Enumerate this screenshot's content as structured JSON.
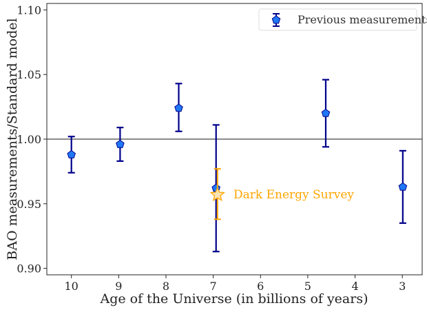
{
  "chart_data": {
    "type": "scatter",
    "title": "",
    "xlabel": "Age of the Universe (in billions of years)",
    "ylabel": "BAO measurements/Standard model",
    "xlim": [
      10.52,
      2.58
    ],
    "x_reversed": true,
    "ylim": [
      0.895,
      1.105
    ],
    "xticks": [
      10,
      9,
      8,
      7,
      6,
      5,
      4,
      3
    ],
    "yticks": [
      "0.90",
      "0.95",
      "1.00",
      "1.05",
      "1.10"
    ],
    "grid": false,
    "reference_line": 1.0,
    "legend": {
      "placement": "top-right",
      "entries": [
        "Previous measurements"
      ]
    },
    "series": [
      {
        "name": "Previous measurements",
        "marker": "pentagon",
        "color": "#1f77f4",
        "errorbar_color": "#00008b",
        "points": [
          {
            "x": 10.0,
            "y": 0.988,
            "y_low": 0.974,
            "y_high": 1.002
          },
          {
            "x": 8.97,
            "y": 0.996,
            "y_low": 0.983,
            "y_high": 1.009
          },
          {
            "x": 7.73,
            "y": 1.024,
            "y_low": 1.006,
            "y_high": 1.043
          },
          {
            "x": 6.94,
            "y": 0.962,
            "y_low": 0.913,
            "y_high": 1.011
          },
          {
            "x": 4.62,
            "y": 1.02,
            "y_low": 0.994,
            "y_high": 1.046
          },
          {
            "x": 2.99,
            "y": 0.963,
            "y_low": 0.935,
            "y_high": 0.991
          }
        ]
      },
      {
        "name": "Dark Energy Survey",
        "marker": "star",
        "color": "#ffa500",
        "fill": "#fde3b4",
        "points": [
          {
            "x": 6.91,
            "y": 0.957,
            "y_low": 0.938,
            "y_high": 0.977
          }
        ]
      }
    ],
    "annotations": [
      "Dark Energy Survey"
    ]
  }
}
